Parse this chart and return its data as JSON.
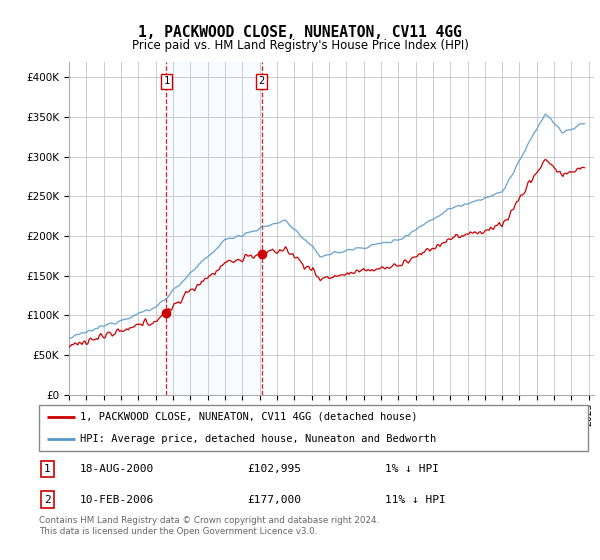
{
  "title": "1, PACKWOOD CLOSE, NUNEATON, CV11 4GG",
  "subtitle": "Price paid vs. HM Land Registry's House Price Index (HPI)",
  "ylim": [
    0,
    420000
  ],
  "yticks": [
    0,
    50000,
    100000,
    150000,
    200000,
    250000,
    300000,
    350000,
    400000
  ],
  "xlim_start": 1995.0,
  "xlim_end": 2025.3,
  "line1_color": "#cc0000",
  "line2_color": "#5599cc",
  "shade_color": "#ddeeff",
  "grid_color": "#cccccc",
  "legend_label1": "1, PACKWOOD CLOSE, NUNEATON, CV11 4GG (detached house)",
  "legend_label2": "HPI: Average price, detached house, Nuneaton and Bedworth",
  "transaction1_label": "1",
  "transaction1_date": "18-AUG-2000",
  "transaction1_price": "£102,995",
  "transaction1_hpi": "1% ↓ HPI",
  "transaction2_label": "2",
  "transaction2_date": "10-FEB-2006",
  "transaction2_price": "£177,000",
  "transaction2_hpi": "11% ↓ HPI",
  "footer": "Contains HM Land Registry data © Crown copyright and database right 2024.\nThis data is licensed under the Open Government Licence v3.0.",
  "transaction1_year": 2000.62,
  "transaction2_year": 2006.11,
  "transaction1_price_val": 102995,
  "transaction2_price_val": 177000,
  "hpi_base_year": 1995.0,
  "hpi_base_value": 71000
}
